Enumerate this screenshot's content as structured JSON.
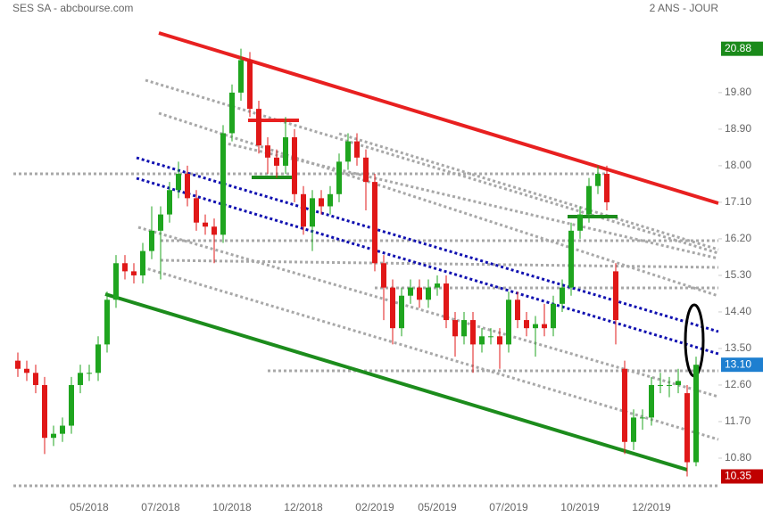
{
  "chart_data": {
    "type": "candlestick",
    "title": "SES SA - abcbourse.com",
    "subtitle": "2 ANS - JOUR",
    "categories": [
      null,
      null,
      null,
      null,
      null,
      null,
      null,
      null,
      "05/2018",
      null,
      null,
      null,
      null,
      null,
      null,
      null,
      "07/2018",
      null,
      null,
      null,
      null,
      null,
      null,
      null,
      "10/2018",
      null,
      null,
      null,
      null,
      null,
      null,
      null,
      "12/2018",
      null,
      null,
      null,
      null,
      null,
      null,
      null,
      "02/2019",
      null,
      null,
      null,
      null,
      null,
      null,
      "05/2019",
      null,
      null,
      null,
      null,
      null,
      null,
      null,
      "07/2019",
      null,
      null,
      null,
      null,
      null,
      null,
      null,
      "10/2019",
      null,
      null,
      null,
      null,
      null,
      null,
      null,
      "12/2019",
      null,
      null,
      null,
      null,
      null
    ],
    "open": [
      13.2,
      13.0,
      12.9,
      12.6,
      11.3,
      11.4,
      11.6,
      12.6,
      12.9,
      12.9,
      13.6,
      14.7,
      15.6,
      15.4,
      15.3,
      15.9,
      16.4,
      16.8,
      17.4,
      17.8,
      17.2,
      16.6,
      16.5,
      16.3,
      18.8,
      19.8,
      20.6,
      19.4,
      18.5,
      18.2,
      18.0,
      18.7,
      17.3,
      16.5,
      17.2,
      17.0,
      17.3,
      18.1,
      18.6,
      18.2,
      17.6,
      15.6,
      15.0,
      14.0,
      14.8,
      15.0,
      14.7,
      15.0,
      15.1,
      14.2,
      13.8,
      14.2,
      13.6,
      13.8,
      13.8,
      13.6,
      14.7,
      14.2,
      14.0,
      14.1,
      14.0,
      14.6,
      15.0,
      16.4,
      16.8,
      17.5,
      17.8,
      15.4,
      13.0,
      11.2,
      11.8,
      11.8,
      12.6,
      12.6,
      12.6,
      12.4,
      10.7
    ],
    "high": [
      13.4,
      13.2,
      13.1,
      12.8,
      11.6,
      11.8,
      12.8,
      13.1,
      13.1,
      13.8,
      14.9,
      15.8,
      15.8,
      15.6,
      16.1,
      17.0,
      17.0,
      17.6,
      18.1,
      18.0,
      17.4,
      16.8,
      16.7,
      19.0,
      20.0,
      20.88,
      20.8,
      19.6,
      18.7,
      18.4,
      19.2,
      18.9,
      17.5,
      17.4,
      17.4,
      17.5,
      18.3,
      18.8,
      18.8,
      18.4,
      17.8,
      15.8,
      15.2,
      15.0,
      15.2,
      15.2,
      15.2,
      15.3,
      15.3,
      14.4,
      14.4,
      14.4,
      14.0,
      14.0,
      14.0,
      14.9,
      14.9,
      14.4,
      14.3,
      14.6,
      14.8,
      15.2,
      16.6,
      17.0,
      17.7,
      18.0,
      18.0,
      15.6,
      13.2,
      12.0,
      12.0,
      12.8,
      12.9,
      12.8,
      13.0,
      12.6,
      13.3
    ],
    "low": [
      12.8,
      12.7,
      12.4,
      10.9,
      11.1,
      11.2,
      11.4,
      12.4,
      12.7,
      12.7,
      13.4,
      14.5,
      15.2,
      15.1,
      15.1,
      15.7,
      15.2,
      16.6,
      17.2,
      17.0,
      16.4,
      16.3,
      15.6,
      16.1,
      18.6,
      19.6,
      19.2,
      18.3,
      17.8,
      17.7,
      17.8,
      17.1,
      16.3,
      15.9,
      16.8,
      16.8,
      17.1,
      17.9,
      18.0,
      16.9,
      15.4,
      14.2,
      13.6,
      13.8,
      14.6,
      14.5,
      14.5,
      14.8,
      14.0,
      13.3,
      13.6,
      12.9,
      13.4,
      13.6,
      13.0,
      13.4,
      14.0,
      13.8,
      13.3,
      13.8,
      13.8,
      14.4,
      14.8,
      16.2,
      16.6,
      17.3,
      16.9,
      13.6,
      10.9,
      11.0,
      11.5,
      11.6,
      12.4,
      12.3,
      12.4,
      10.35,
      10.6
    ],
    "close": [
      13.0,
      12.9,
      12.6,
      11.3,
      11.4,
      11.6,
      12.6,
      12.9,
      12.9,
      13.6,
      14.7,
      15.6,
      15.4,
      15.3,
      15.9,
      16.4,
      16.8,
      17.4,
      17.8,
      17.2,
      16.6,
      16.5,
      16.3,
      18.8,
      19.8,
      20.6,
      19.4,
      18.5,
      18.2,
      18.0,
      18.7,
      17.3,
      16.5,
      17.2,
      17.0,
      17.3,
      18.1,
      18.6,
      18.2,
      17.6,
      15.6,
      15.0,
      14.0,
      14.8,
      15.0,
      14.7,
      15.0,
      15.1,
      14.2,
      13.8,
      14.2,
      13.6,
      13.8,
      13.8,
      13.6,
      14.7,
      14.2,
      14.0,
      14.1,
      14.0,
      14.6,
      15.0,
      16.4,
      16.8,
      17.5,
      17.8,
      17.1,
      14.2,
      11.2,
      11.8,
      11.8,
      12.6,
      12.6,
      12.6,
      12.7,
      10.7,
      13.1
    ],
    "up_color": "#1fa51f",
    "down_color": "#e01818",
    "ylim": [
      9.9,
      22.08
    ],
    "yticks": [
      {
        "value": 10.8,
        "label": "10.80"
      },
      {
        "value": 11.7,
        "label": "11.70"
      },
      {
        "value": 12.6,
        "label": "12.60"
      },
      {
        "value": 13.5,
        "label": "13.50"
      },
      {
        "value": 14.4,
        "label": "14.40"
      },
      {
        "value": 15.3,
        "label": "15.30"
      },
      {
        "value": 16.2,
        "label": "16.20"
      },
      {
        "value": 17.1,
        "label": "17.10"
      },
      {
        "value": 18.0,
        "label": "18.00"
      },
      {
        "value": 18.9,
        "label": "18.90"
      },
      {
        "value": 19.8,
        "label": "19.80"
      }
    ],
    "markers": [
      {
        "value": 20.88,
        "label": "20.88",
        "color": "#1a8a1a"
      },
      {
        "value": 13.1,
        "label": "13.10",
        "color": "#1e7fd0"
      },
      {
        "value": 10.35,
        "label": "10.35",
        "color": "#c00000"
      }
    ]
  }
}
